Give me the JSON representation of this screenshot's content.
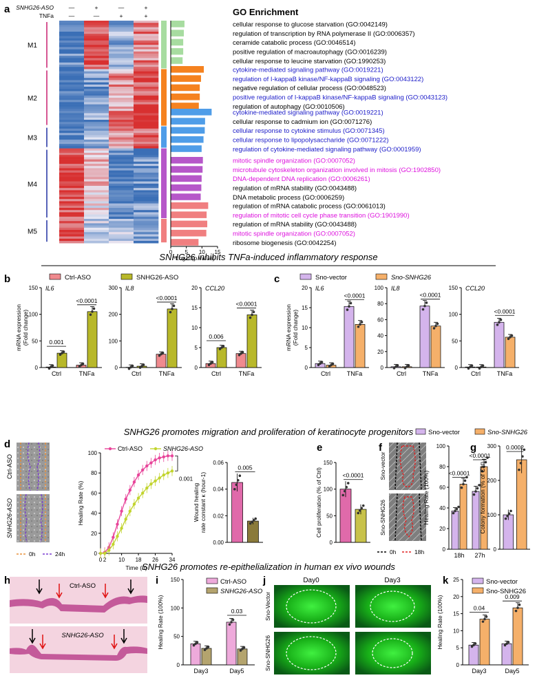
{
  "panel_letters": [
    "a",
    "b",
    "c",
    "d",
    "e",
    "f",
    "g",
    "h",
    "i",
    "j",
    "k"
  ],
  "colors": {
    "ctrl_aso": "#f08a8e",
    "snhg26_aso": "#b8b82a",
    "sno_vector": "#d4b4ec",
    "sno_snhg26": "#f5b06a",
    "line_ctrl": "#e8459a",
    "line_aso": "#c2d42e",
    "e_ctrl": "#e06aaa",
    "e_aso": "#c8c24a",
    "i_ctrl": "#eeaadb",
    "i_aso": "#b4a46e",
    "m1": "#a7dca0",
    "m2": "#f5821f",
    "m3": "#4f9de8",
    "m4": "#b657c9",
    "m5": "#f07f80",
    "go_blue": "#1a1ac8",
    "go_magenta": "#dd10dd",
    "dashed_0h": "#e8903a",
    "dashed_24h": "#7a3ad0",
    "dashed_18h": "#e02020"
  },
  "panel_a": {
    "header": {
      "snhg26_aso": "SNHG26-ASO",
      "tnfa": "TNFa",
      "col_signs_aso": [
        "—",
        "+",
        "—",
        "+"
      ],
      "col_signs_tnfa": [
        "—",
        "—",
        "+",
        "+"
      ]
    },
    "modules": [
      "M1",
      "M2",
      "M3",
      "M4",
      "M5"
    ],
    "title": "GO Enrichment",
    "xlabel": "-Log10(p value)"
  },
  "chart_data": [
    {
      "panel": "a",
      "type": "bar",
      "orientation": "horizontal",
      "title": "GO Enrichment",
      "xlabel": "-Log10(p value)",
      "xlim": [
        0,
        15
      ],
      "xticks": [
        0,
        5,
        10,
        15
      ],
      "terms": [
        {
          "module": "M1",
          "label": "cellular response to glucose starvation (GO:0042149)",
          "value": 4.4,
          "color": "black"
        },
        {
          "module": "M1",
          "label": "regulation of transcription by RNA polymerase II (GO:0006357)",
          "value": 4.2,
          "color": "black"
        },
        {
          "module": "M1",
          "label": "ceramide catabolic process (GO:0046514)",
          "value": 4.0,
          "color": "black"
        },
        {
          "module": "M1",
          "label": "positive regulation of macroautophagy (GO:0016239)",
          "value": 4.0,
          "color": "black"
        },
        {
          "module": "M1",
          "label": "cellular response to leucine starvation (GO:1990253)",
          "value": 3.8,
          "color": "black"
        },
        {
          "module": "M2",
          "label": "cytokine-mediated signaling pathway (GO:0019221)",
          "value": 10.6,
          "color": "blue"
        },
        {
          "module": "M2",
          "label": "regulation of I-kappaB kinase/NF-kappaB signaling (GO:0043122)",
          "value": 9.7,
          "color": "blue"
        },
        {
          "module": "M2",
          "label": "negative regulation of cellular process (GO:0048523)",
          "value": 9.3,
          "color": "black"
        },
        {
          "module": "M2",
          "label": "positive regulation of I-kappaB kinase/NF-kappaB signaling (GO:0043123)",
          "value": 9.3,
          "color": "blue"
        },
        {
          "module": "M2",
          "label": "regulation of autophagy (GO:0010506)",
          "value": 9.0,
          "color": "black"
        },
        {
          "module": "M3",
          "label": "cytokine-mediated signaling pathway (GO:0019221)",
          "value": 13.1,
          "color": "blue"
        },
        {
          "module": "M3",
          "label": "cellular response to cadmium ion (GO:0071276)",
          "value": 11.0,
          "color": "black"
        },
        {
          "module": "M3",
          "label": "cellular response to cytokine stimulus (GO:0071345)",
          "value": 10.9,
          "color": "blue"
        },
        {
          "module": "M3",
          "label": "cellular response to lipopolysaccharide (GO:0071222)",
          "value": 10.5,
          "color": "blue"
        },
        {
          "module": "M3",
          "label": "regulation of cytokine-mediated signaling pathway (GO:0001959)",
          "value": 9.9,
          "color": "blue"
        },
        {
          "module": "M4",
          "label": "mitotic spindle organization (GO:0007052)",
          "value": 10.3,
          "color": "magenta"
        },
        {
          "module": "M4",
          "label": "microtubule cytoskeleton organization involved in mitosis (GO:1902850)",
          "value": 10.2,
          "color": "magenta"
        },
        {
          "module": "M4",
          "label": "DNA-dependent DNA replication (GO:0006261)",
          "value": 9.9,
          "color": "magenta"
        },
        {
          "module": "M4",
          "label": "regulation of mRNA stability (GO:0043488)",
          "value": 9.8,
          "color": "black"
        },
        {
          "module": "M4",
          "label": "DNA metabolic process (GO:0006259)",
          "value": 9.6,
          "color": "black"
        },
        {
          "module": "M5",
          "label": "regulation of mRNA catabolic process (GO:0061013)",
          "value": 12.0,
          "color": "black"
        },
        {
          "module": "M5",
          "label": "regulation of mitotic cell cycle phase transition (GO:1901990)",
          "value": 11.5,
          "color": "magenta"
        },
        {
          "module": "M5",
          "label": "regulation of mRNA stability (GO:0043488)",
          "value": 11.7,
          "color": "black"
        },
        {
          "module": "M5",
          "label": "mitotic spindle organization (GO:0007052)",
          "value": 11.4,
          "color": "magenta"
        },
        {
          "module": "M5",
          "label": "ribosome biogenesis (GO:0042254)",
          "value": 8.9,
          "color": "black"
        }
      ]
    },
    {
      "panel": "b",
      "type": "bar",
      "ylabel": "mRNA expression (Fold change)",
      "categories": [
        "Ctrl",
        "TNFa"
      ],
      "legend": [
        "Ctrl-ASO",
        "SNHG26-ASO"
      ],
      "subplots": [
        {
          "gene": "IL6",
          "ylim": [
            0,
            150
          ],
          "yticks": [
            0,
            50,
            100,
            150
          ],
          "ctrl_aso": [
            1,
            4.5
          ],
          "snhg26_aso": [
            27,
            105
          ],
          "pvalues": [
            {
              "cat": 0,
              "text": "0.001"
            },
            {
              "cat": 1,
              "text": "<0.0001"
            }
          ]
        },
        {
          "gene": "IL8",
          "ylim": [
            0,
            300
          ],
          "yticks": [
            0,
            100,
            200,
            300
          ],
          "ctrl_aso": [
            1,
            50
          ],
          "snhg26_aso": [
            5,
            220
          ],
          "pvalues": [
            {
              "cat": 1,
              "text": "<0.0001"
            }
          ]
        },
        {
          "gene": "CCL20",
          "ylim": [
            0,
            20
          ],
          "yticks": [
            0,
            5,
            10,
            15,
            20
          ],
          "ctrl_aso": [
            1,
            3.5
          ],
          "snhg26_aso": [
            5,
            13.2
          ],
          "pvalues": [
            {
              "cat": 0,
              "text": "0.006"
            },
            {
              "cat": 1,
              "text": "<0.0001"
            }
          ]
        }
      ]
    },
    {
      "panel": "c",
      "type": "bar",
      "ylabel": "mRNA expression (Fold change)",
      "categories": [
        "Ctrl",
        "TNFa"
      ],
      "legend": [
        "Sno-vector",
        "Sno-SNHG26"
      ],
      "subplots": [
        {
          "gene": "IL6",
          "ylim": [
            0,
            20
          ],
          "yticks": [
            0,
            5,
            10,
            15,
            20
          ],
          "sno_vector": [
            1,
            15.3
          ],
          "sno_snhg26": [
            0.6,
            10.8
          ],
          "pvalues": [
            {
              "cat": 1,
              "text": "<0.0001"
            }
          ]
        },
        {
          "gene": "IL8",
          "ylim": [
            0,
            100
          ],
          "yticks": [
            0,
            20,
            40,
            60,
            80,
            100
          ],
          "sno_vector": [
            1,
            77
          ],
          "sno_snhg26": [
            1,
            52
          ],
          "pvalues": [
            {
              "cat": 1,
              "text": "<0.0001"
            }
          ]
        },
        {
          "gene": "CCL20",
          "ylim": [
            0,
            150
          ],
          "yticks": [
            0,
            50,
            100,
            150
          ],
          "sno_vector": [
            1,
            85
          ],
          "sno_snhg26": [
            1,
            57
          ],
          "pvalues": [
            {
              "cat": 1,
              "text": "<0.0001"
            }
          ]
        }
      ]
    },
    {
      "panel": "d",
      "type": "line",
      "xlabel": "Time (h)",
      "ylabel": "Healing Rate (%)",
      "xlim": [
        0,
        34
      ],
      "ylim": [
        0,
        100
      ],
      "xticks": [
        0,
        2,
        10,
        18,
        26,
        34
      ],
      "yticks": [
        0,
        20,
        40,
        60,
        80,
        100
      ],
      "series": [
        {
          "name": "Ctrl-ASO",
          "x": [
            0,
            2,
            4,
            6,
            8,
            10,
            12,
            14,
            16,
            18,
            20,
            22,
            24,
            26,
            28,
            30,
            32,
            34
          ],
          "y": [
            0,
            1,
            6,
            16,
            29,
            42,
            54,
            63,
            71,
            78,
            83,
            87,
            90,
            93,
            95,
            96,
            97,
            97
          ]
        },
        {
          "name": "SNHG26-ASO",
          "x": [
            0,
            2,
            4,
            6,
            8,
            10,
            12,
            14,
            16,
            18,
            20,
            22,
            24,
            26,
            28,
            30,
            32,
            34
          ],
          "y": [
            0,
            0,
            3,
            9,
            17,
            25,
            34,
            42,
            49,
            55,
            60,
            65,
            69,
            72,
            75,
            78,
            80,
            82
          ]
        }
      ],
      "pvalue": "0.001"
    },
    {
      "panel": "d2",
      "type": "bar",
      "ylabel": "Wound healing rate constant κ (hour-1)",
      "ylim": [
        0,
        0.06
      ],
      "yticks": [
        0.0,
        0.02,
        0.04,
        0.06
      ],
      "values": {
        "Ctrl-ASO": 0.045,
        "SNHG26-ASO": 0.016
      },
      "pvalue": "0.005"
    },
    {
      "panel": "e",
      "type": "bar",
      "ylabel": "Cell proliferation (% of Ctrl)",
      "ylim": [
        0,
        150
      ],
      "yticks": [
        0,
        50,
        100,
        150
      ],
      "values": {
        "Ctrl-ASO": 100,
        "SNHG26-ASO": 62
      },
      "pvalue": "<0.0001"
    },
    {
      "panel": "f",
      "type": "bar",
      "ylabel": "Healing Rate (100%)",
      "categories": [
        "18h",
        "27h"
      ],
      "ylim": [
        0,
        100
      ],
      "yticks": [
        0,
        20,
        40,
        60,
        80,
        100
      ],
      "sno_vector": [
        37,
        56
      ],
      "sno_snhg26": [
        63,
        80
      ],
      "pvalues": [
        "<0.0001",
        "<0.0001"
      ],
      "image_legend": [
        "0h",
        "18h"
      ]
    },
    {
      "panel": "g",
      "type": "bar",
      "ylabel": "Colony formation (% of Ctrl)",
      "ylim": [
        0,
        300
      ],
      "yticks": [
        0,
        100,
        200,
        300
      ],
      "values": {
        "Sno-vector": 100,
        "Sno-SNHG26": 260
      },
      "pvalue": "0.0002"
    },
    {
      "panel": "i",
      "type": "bar",
      "ylabel": "Healing Rate (100%)",
      "categories": [
        "Day3",
        "Day5"
      ],
      "legend": [
        "Ctrl-ASO",
        "SNHG26-ASO"
      ],
      "ylim": [
        0,
        150
      ],
      "yticks": [
        0,
        50,
        100,
        150
      ],
      "ctrl_aso": [
        37,
        75
      ],
      "snhg26_aso": [
        29,
        28
      ],
      "pvalues": [
        {
          "cat": 1,
          "text": "0.03"
        }
      ]
    },
    {
      "panel": "k",
      "type": "bar",
      "ylabel": "Healing Rate (100%)",
      "categories": [
        "Day3",
        "Day5"
      ],
      "legend": [
        "Sno-vector",
        "Sno-SNHG26"
      ],
      "ylim": [
        0,
        25
      ],
      "yticks": [
        0,
        5,
        10,
        15,
        20,
        25
      ],
      "sno_vector": [
        5.8,
        6.2
      ],
      "sno_snhg26": [
        13.4,
        16.7
      ],
      "pvalues": [
        {
          "cat": 0,
          "text": "0.04"
        },
        {
          "cat": 1,
          "text": "0.009"
        }
      ]
    }
  ],
  "section_titles": {
    "inflammatory": "SNHG26 inhibits TNFa-induced inflammatory response",
    "migration": "SNHG26 promotes migration and proliferation of keratinocyte progenitors",
    "reepithelialization": "SNHG26 promotes re-epithelialization in human ex vivo wounds"
  },
  "labels": {
    "ctrl_aso": "Ctrl-ASO",
    "snhg26_aso": "SNHG26-ASO",
    "sno_vector": "Sno-vector",
    "sno_snhg26": "Sno-SNHG26",
    "sno_vector_cap": "Sno-Vector",
    "d_legend_0h": "0h",
    "d_legend_24h": "24h",
    "f_legend_0h": "0h",
    "f_legend_18h": "18h",
    "j_day0": "Day0",
    "j_day3": "Day3"
  }
}
